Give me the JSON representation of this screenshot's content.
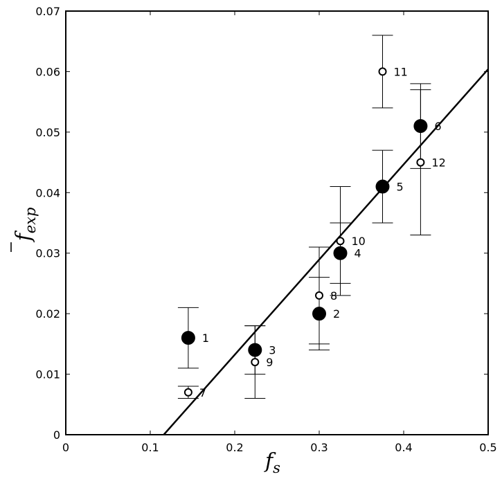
{
  "chart_data": {
    "type": "scatter",
    "xlabel": "f",
    "xlabel_sub": "s",
    "ylabel": "f",
    "ylabel_sub": "exp",
    "ylabel_bar": true,
    "xlim": [
      0,
      0.5
    ],
    "ylim": [
      0,
      0.07
    ],
    "x_ticks": [
      "0",
      "0.1",
      "0.2",
      "0.3",
      "0.4",
      "0.5"
    ],
    "x_tick_values": [
      0,
      0.1,
      0.2,
      0.3,
      0.4,
      0.5
    ],
    "y_ticks": [
      "0",
      "0.01",
      "0.02",
      "0.03",
      "0.04",
      "0.05",
      "0.06",
      "0.07"
    ],
    "y_tick_values": [
      0,
      0.01,
      0.02,
      0.03,
      0.04,
      0.05,
      0.06,
      0.07
    ],
    "grid": false,
    "series": [
      {
        "marker": "filled-circle",
        "points": [
          {
            "label": "1",
            "x": 0.145,
            "y": 0.016,
            "ylow": 0.011,
            "yhigh": 0.021
          },
          {
            "label": "2",
            "x": 0.3,
            "y": 0.02,
            "ylow": 0.015,
            "yhigh": 0.026
          },
          {
            "label": "3",
            "x": 0.224,
            "y": 0.014,
            "ylow": 0.01,
            "yhigh": 0.018
          },
          {
            "label": "4",
            "x": 0.325,
            "y": 0.03,
            "ylow": 0.025,
            "yhigh": 0.035
          },
          {
            "label": "5",
            "x": 0.375,
            "y": 0.041,
            "ylow": 0.035,
            "yhigh": 0.047
          },
          {
            "label": "6",
            "x": 0.42,
            "y": 0.051,
            "ylow": 0.044,
            "yhigh": 0.058
          }
        ]
      },
      {
        "marker": "open-circle",
        "points": [
          {
            "label": "7",
            "x": 0.145,
            "y": 0.007,
            "ylow": 0.006,
            "yhigh": 0.008
          },
          {
            "label": "8",
            "x": 0.3,
            "y": 0.023,
            "ylow": 0.014,
            "yhigh": 0.031
          },
          {
            "label": "9",
            "x": 0.224,
            "y": 0.012,
            "ylow": 0.006,
            "yhigh": 0.018
          },
          {
            "label": "10",
            "x": 0.325,
            "y": 0.032,
            "ylow": 0.023,
            "yhigh": 0.041
          },
          {
            "label": "11",
            "x": 0.375,
            "y": 0.06,
            "ylow": 0.054,
            "yhigh": 0.066
          },
          {
            "label": "12",
            "x": 0.42,
            "y": 0.045,
            "ylow": 0.033,
            "yhigh": 0.057
          }
        ]
      }
    ],
    "fit_line": {
      "x": [
        0.116,
        0.5
      ],
      "y": [
        0,
        0.0604
      ]
    }
  }
}
